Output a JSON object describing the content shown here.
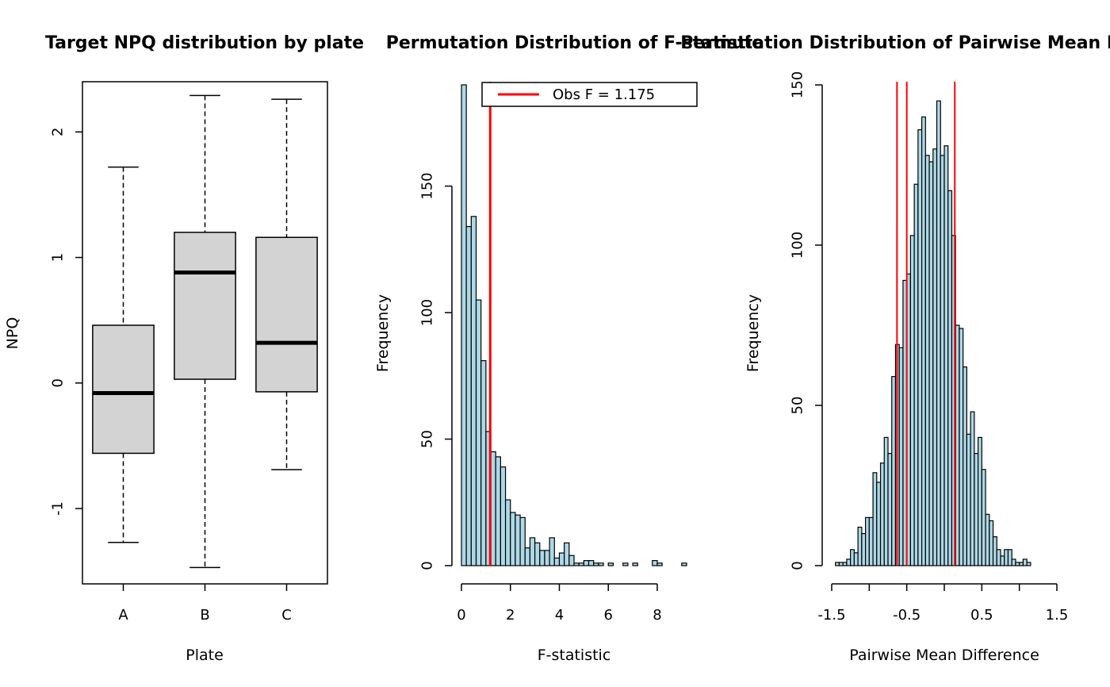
{
  "chart_data": [
    {
      "type": "boxplot",
      "title": "Target NPQ distribution by plate",
      "xlabel": "Plate",
      "ylabel": "NPQ",
      "ylim": [
        -1.6,
        2.4
      ],
      "yticks": [
        -1,
        0,
        1,
        2
      ],
      "ytick_labels": [
        "-1",
        "0",
        "1",
        "2"
      ],
      "categories": [
        "A",
        "B",
        "C"
      ],
      "boxes": [
        {
          "name": "A",
          "whisker_low": -1.27,
          "q1": -0.56,
          "median": -0.08,
          "q3": 0.46,
          "whisker_high": 1.72
        },
        {
          "name": "B",
          "whisker_low": -1.47,
          "q1": 0.03,
          "median": 0.88,
          "q3": 1.2,
          "whisker_high": 2.29
        },
        {
          "name": "C",
          "whisker_low": -0.69,
          "q1": -0.07,
          "median": 0.32,
          "q3": 1.16,
          "whisker_high": 2.26
        }
      ],
      "colors": {
        "box_fill": "#d3d3d3",
        "stroke": "#000000"
      }
    },
    {
      "type": "histogram",
      "title": "Permutation Distribution of F-statistic",
      "xlabel": "F-statistic",
      "ylabel": "Frequency",
      "xlim": [
        0,
        9.2
      ],
      "ylim": [
        0,
        190
      ],
      "xticks": [
        0,
        2,
        4,
        6,
        8
      ],
      "xtick_labels": [
        "0",
        "2",
        "4",
        "6",
        "8"
      ],
      "yticks": [
        0,
        50,
        100,
        150
      ],
      "ytick_labels": [
        "0",
        "50",
        "100",
        "150"
      ],
      "bin_start": 0,
      "bin_width": 0.2,
      "counts": [
        190,
        134,
        138,
        105,
        81,
        53,
        45,
        43,
        39,
        26,
        21,
        20,
        19,
        7,
        11,
        9,
        6,
        6,
        11,
        3,
        5,
        9,
        4,
        1,
        1,
        2,
        2,
        1,
        1,
        0,
        1,
        0,
        0,
        1,
        0,
        1,
        0,
        0,
        0,
        2,
        1,
        0,
        0,
        0,
        0,
        1
      ],
      "vlines": [
        {
          "x": 1.175,
          "color": "#ff0000"
        }
      ],
      "legend": {
        "label": "Obs F = 1.175",
        "color": "#ff0000",
        "position": "top-right"
      },
      "colors": {
        "bar_fill": "#add8e6",
        "stroke": "#000000"
      }
    },
    {
      "type": "histogram",
      "title": "Permutation Distribution of Pairwise Mean Difference",
      "xlabel": "Pairwise Mean Difference",
      "ylabel": "Frequency",
      "xlim": [
        -1.5,
        1.5
      ],
      "ylim": [
        0,
        150
      ],
      "xticks": [
        -1.5,
        -1.0,
        -0.5,
        0.0,
        0.5,
        1.0,
        1.5
      ],
      "xtick_labels": [
        "-1.5",
        "",
        "-0.5",
        "",
        "0.5",
        "",
        "1.5"
      ],
      "yticks": [
        0,
        50,
        100,
        150
      ],
      "ytick_labels": [
        "0",
        "50",
        "100",
        "150"
      ],
      "bin_start": -1.45,
      "bin_width": 0.05,
      "counts": [
        1,
        1,
        1,
        2,
        5,
        4,
        12,
        10,
        15,
        15,
        29,
        26,
        32,
        40,
        35,
        59,
        69,
        68,
        89,
        91,
        103,
        119,
        136,
        140,
        128,
        126,
        130,
        145,
        128,
        131,
        117,
        103,
        75,
        74,
        62,
        41,
        48,
        35,
        40,
        30,
        16,
        14,
        9,
        5,
        3,
        5,
        5,
        2,
        1,
        1,
        2,
        1
      ],
      "vlines": [
        {
          "x": -0.63,
          "color": "#ff0000"
        },
        {
          "x": -0.5,
          "color": "#ff0000"
        },
        {
          "x": 0.14,
          "color": "#ff0000"
        }
      ],
      "colors": {
        "bar_fill": "#add8e6",
        "stroke": "#000000"
      }
    }
  ]
}
